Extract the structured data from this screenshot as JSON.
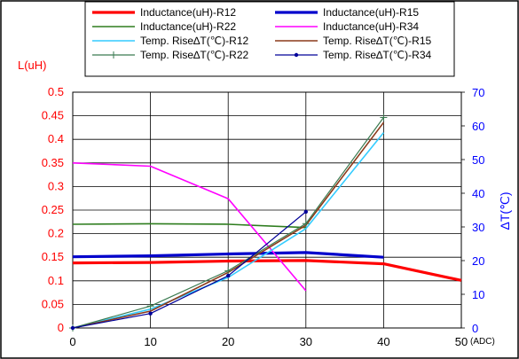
{
  "chart_data": {
    "type": "line",
    "x": [
      0,
      10,
      20,
      30,
      40,
      50
    ],
    "xlim": [
      0,
      50
    ],
    "xticks": [
      "0",
      "10",
      "20",
      "30",
      "40",
      "50"
    ],
    "x_unit": "(ADC)",
    "left_axis": {
      "label": "L(uH)",
      "ylim": [
        0,
        0.5
      ],
      "ticks": [
        "0",
        "0.05",
        "0.1",
        "0.15",
        "0.2",
        "0.25",
        "0.3",
        "0.35",
        "0.4",
        "0.45",
        "0.5"
      ],
      "color": "#ff0000"
    },
    "right_axis": {
      "label": "ΔT(℃)",
      "ylim": [
        0,
        70
      ],
      "ticks": [
        "0",
        "10",
        "20",
        "30",
        "40",
        "50",
        "60",
        "70"
      ],
      "color": "#0000ff"
    },
    "grid": true,
    "legend_position": "top",
    "series": [
      {
        "name": "Inductance(uH)-R12",
        "axis": "left",
        "color": "#ff0000",
        "width": 3.2,
        "marker": "none",
        "x": [
          0,
          10,
          20,
          30,
          40,
          50
        ],
        "values": [
          0.138,
          0.139,
          0.142,
          0.143,
          0.136,
          0.101
        ]
      },
      {
        "name": "Inductance(uH)-R15",
        "axis": "right_placeholder",
        "color": "#0000cc",
        "width": 3.2,
        "marker": "none",
        "x": [
          0,
          10,
          20,
          30,
          40
        ],
        "values": [
          0.151,
          0.153,
          0.157,
          0.16,
          0.15
        ]
      },
      {
        "name": "Inductance(uH)-R22",
        "axis": "left",
        "color": "#2e7d1e",
        "width": 1.6,
        "marker": "none",
        "x": [
          0,
          10,
          20,
          30
        ],
        "values": [
          0.22,
          0.221,
          0.22,
          0.213
        ]
      },
      {
        "name": "Inductance(uH)-R34",
        "axis": "left",
        "color": "#ff00ff",
        "width": 1.6,
        "marker": "none",
        "x": [
          0,
          10,
          20,
          30
        ],
        "values": [
          0.35,
          0.343,
          0.274,
          0.079
        ]
      },
      {
        "name": "Temp. Rise∆T(℃)-R12",
        "axis": "right",
        "color": "#33ccff",
        "width": 1.6,
        "marker": "none",
        "x": [
          0,
          10,
          20,
          30,
          40
        ],
        "values": [
          0,
          5.6,
          15.0,
          29.5,
          58.0
        ]
      },
      {
        "name": "Temp. Rise∆T(℃)-R15",
        "axis": "right",
        "color": "#8b3a1a",
        "width": 1.6,
        "marker": "none",
        "x": [
          0,
          10,
          20,
          30,
          40
        ],
        "values": [
          0,
          5.0,
          16.5,
          30.5,
          61.0
        ]
      },
      {
        "name": "Temp. Rise∆T(℃)-R22",
        "axis": "right",
        "color": "#3a7a50",
        "width": 1.2,
        "marker": "plus",
        "x": [
          0,
          10,
          20,
          30,
          40
        ],
        "values": [
          0,
          6.5,
          17.0,
          31.0,
          62.5
        ]
      },
      {
        "name": "Temp. Rise∆T(℃)-R34",
        "axis": "right",
        "color": "#000099",
        "width": 1.2,
        "marker": "dot",
        "x": [
          0,
          10,
          20,
          30
        ],
        "values": [
          0,
          4.3,
          15.5,
          34.5
        ]
      }
    ]
  }
}
